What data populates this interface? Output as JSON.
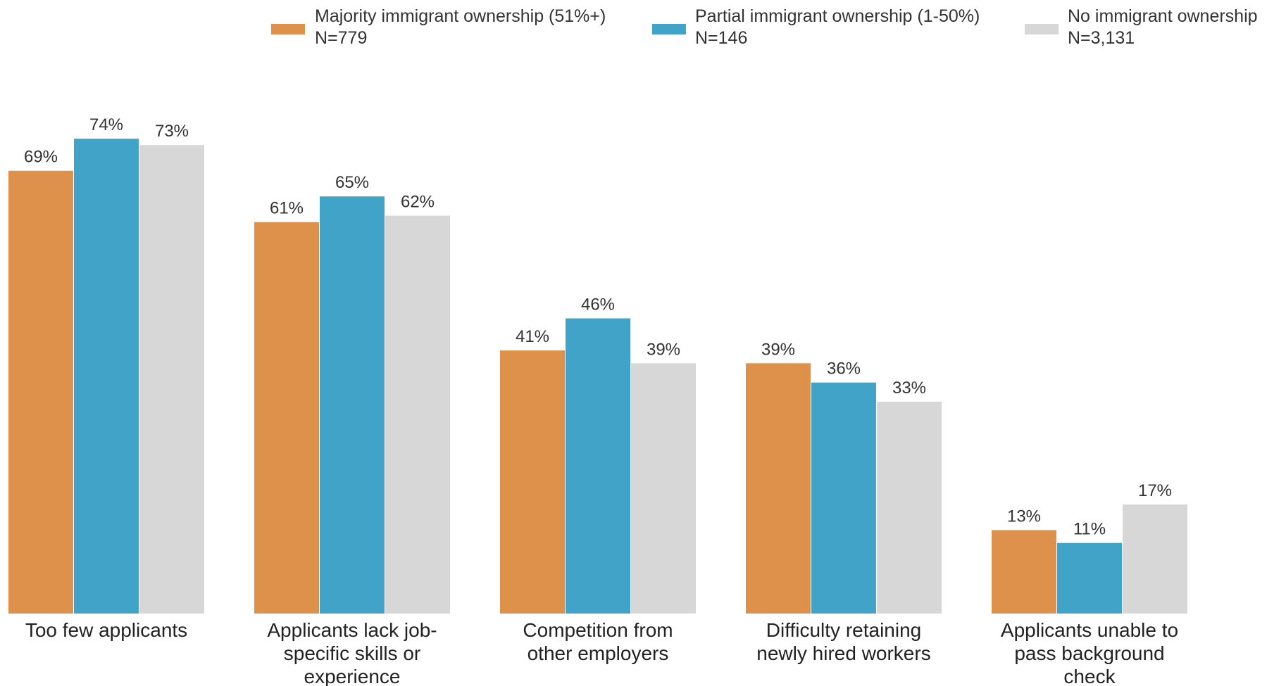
{
  "chart_data": {
    "type": "bar",
    "title": "",
    "xlabel": "",
    "ylabel": "",
    "ylim": [
      0,
      80
    ],
    "grid": false,
    "legend_position": "top-right",
    "value_suffix": "%",
    "categories": [
      [
        "Too few applicants"
      ],
      [
        "Applicants lack job-",
        "specific skills or",
        "experience"
      ],
      [
        "Competition from",
        "other employers"
      ],
      [
        "Difficulty retaining",
        "newly hired workers"
      ],
      [
        "Applicants unable to",
        "pass background",
        "check"
      ]
    ],
    "series": [
      {
        "name": "Majority immigrant ownership (51%+)",
        "n_label": "N=779",
        "color": "#DE914A",
        "values": [
          69,
          61,
          41,
          39,
          13
        ]
      },
      {
        "name": "Partial immigrant ownership (1-50%)",
        "n_label": "N=146",
        "color": "#41A3C8",
        "values": [
          74,
          65,
          46,
          36,
          11
        ]
      },
      {
        "name": "No immigrant ownership",
        "n_label": "N=3,131",
        "color": "#D7D7D7",
        "values": [
          73,
          62,
          39,
          33,
          17
        ]
      }
    ]
  }
}
